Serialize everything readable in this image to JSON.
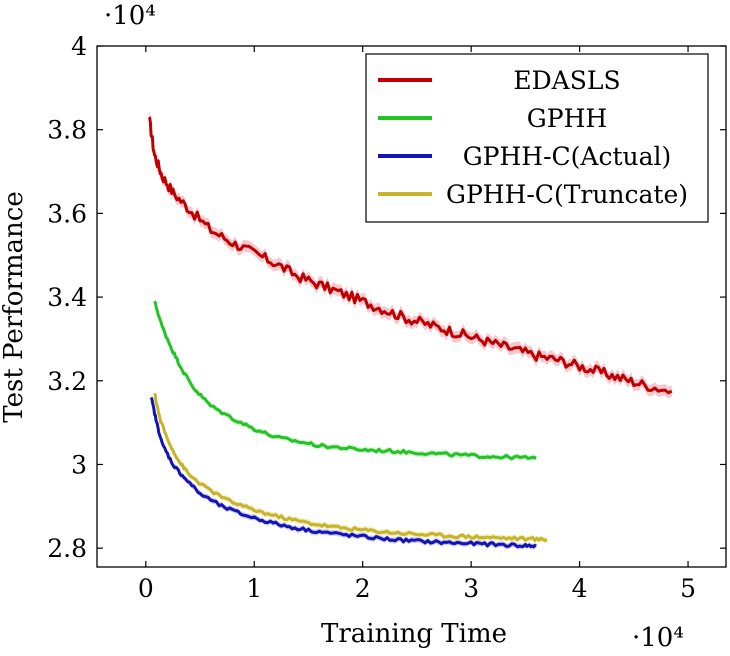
{
  "chart_data": {
    "type": "line",
    "title": "",
    "xlabel": "Training Time",
    "ylabel": "Test Performance",
    "x_multiplier": "·10⁴",
    "y_multiplier": "·10⁴",
    "xlim": [
      -0.45,
      5.35
    ],
    "ylim": [
      2.755,
      4.0
    ],
    "x_ticks": [
      0,
      1,
      2,
      3,
      4,
      5
    ],
    "y_ticks": [
      2.8,
      3,
      3.2,
      3.4,
      3.6,
      3.8,
      4
    ],
    "x_tick_labels": [
      "0",
      "1",
      "2",
      "3",
      "4",
      "5"
    ],
    "y_tick_labels": [
      "2.8",
      "3",
      "3.2",
      "3.4",
      "3.6",
      "3.8",
      "4"
    ],
    "grid": false,
    "legend_position": "top-right",
    "series": [
      {
        "name": "EDASLS",
        "color": "#c00000",
        "band_color": "#f4b5bd",
        "x": [
          0.03,
          0.08,
          0.15,
          0.25,
          0.4,
          0.6,
          0.8,
          1.0,
          1.2,
          1.4,
          1.6,
          1.8,
          2.0,
          2.2,
          2.4,
          2.6,
          2.8,
          3.0,
          3.2,
          3.4,
          3.6,
          3.8,
          4.0,
          4.2,
          4.4,
          4.6,
          4.85
        ],
        "y": [
          3.83,
          3.74,
          3.69,
          3.65,
          3.61,
          3.56,
          3.53,
          3.505,
          3.48,
          3.45,
          3.43,
          3.41,
          3.39,
          3.37,
          3.35,
          3.335,
          3.32,
          3.305,
          3.29,
          3.275,
          3.26,
          3.25,
          3.235,
          3.22,
          3.205,
          3.19,
          3.175
        ]
      },
      {
        "name": "GPHH",
        "color": "#22c422",
        "band_color": "#c7f0c7",
        "x": [
          0.08,
          0.15,
          0.25,
          0.35,
          0.45,
          0.6,
          0.8,
          1.0,
          1.2,
          1.4,
          1.6,
          1.8,
          2.0,
          2.2,
          2.4,
          2.6,
          2.8,
          3.0,
          3.2,
          3.4,
          3.6
        ],
        "y": [
          3.39,
          3.33,
          3.27,
          3.22,
          3.18,
          3.14,
          3.11,
          3.085,
          3.065,
          3.055,
          3.045,
          3.04,
          3.035,
          3.033,
          3.03,
          3.027,
          3.024,
          3.021,
          3.019,
          3.017,
          3.015
        ]
      },
      {
        "name": "GPHH-C(Actual)",
        "color": "#1414b4",
        "band_color": "#b9b9f0",
        "x": [
          0.05,
          0.1,
          0.15,
          0.25,
          0.35,
          0.5,
          0.7,
          0.9,
          1.1,
          1.3,
          1.5,
          1.7,
          1.9,
          2.1,
          2.3,
          2.5,
          2.7,
          2.9,
          3.1,
          3.3,
          3.5,
          3.6
        ],
        "y": [
          3.16,
          3.1,
          3.05,
          3.0,
          2.97,
          2.93,
          2.9,
          2.88,
          2.865,
          2.852,
          2.843,
          2.836,
          2.83,
          2.825,
          2.82,
          2.817,
          2.814,
          2.812,
          2.81,
          2.808,
          2.806,
          2.805
        ]
      },
      {
        "name": "GPHH-C(Truncate)",
        "color": "#c8b428",
        "band_color": "#efe7aa",
        "x": [
          0.08,
          0.13,
          0.2,
          0.3,
          0.4,
          0.55,
          0.75,
          0.95,
          1.15,
          1.35,
          1.55,
          1.75,
          1.95,
          2.15,
          2.35,
          2.55,
          2.75,
          2.95,
          3.15,
          3.35,
          3.55,
          3.7
        ],
        "y": [
          3.17,
          3.11,
          3.06,
          3.01,
          2.975,
          2.945,
          2.915,
          2.895,
          2.88,
          2.868,
          2.858,
          2.85,
          2.845,
          2.84,
          2.836,
          2.833,
          2.83,
          2.828,
          2.826,
          2.824,
          2.822,
          2.82
        ]
      }
    ]
  }
}
